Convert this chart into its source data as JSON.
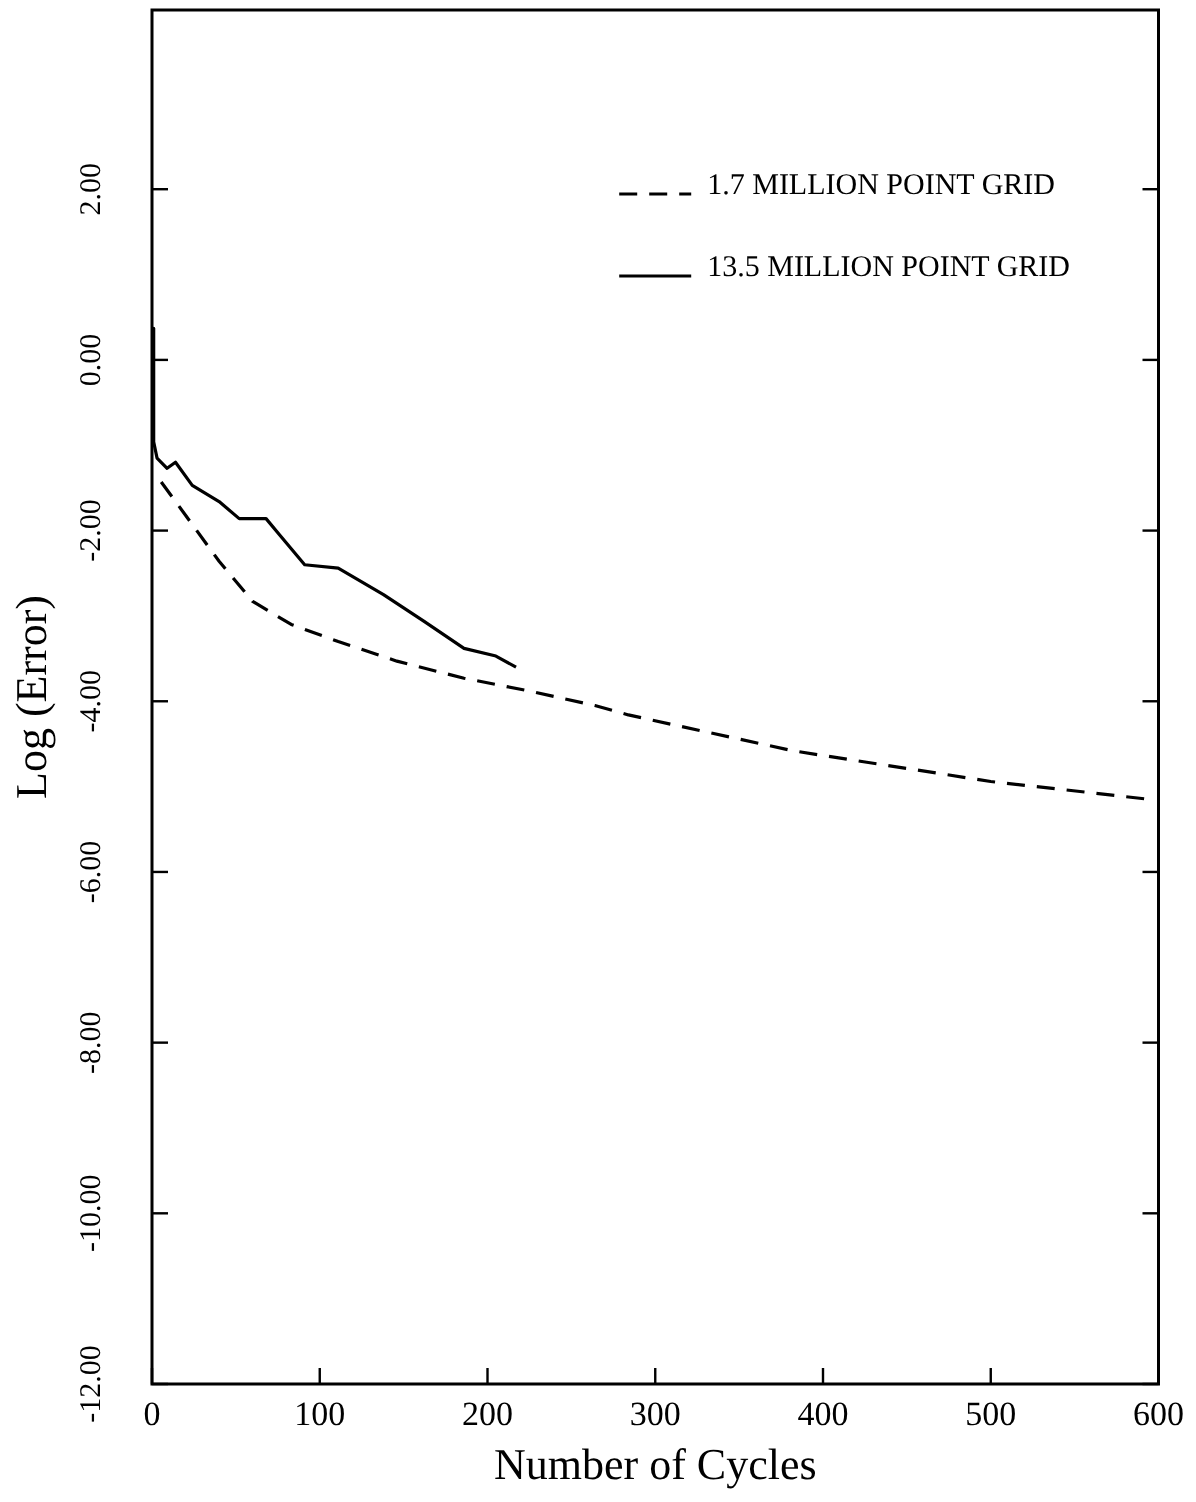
{
  "chart_data": {
    "type": "line",
    "xlabel": "Number of Cycles",
    "ylabel": "Log (Error)",
    "legend": "top right",
    "grid": false,
    "marker": "none",
    "xlim": [
      0,
      600
    ],
    "xticks": [
      0,
      100,
      200,
      300,
      400,
      500,
      600
    ],
    "ylim": [
      -12,
      4.1
    ],
    "yticks": [
      {
        "value": 2,
        "label": "2.00"
      },
      {
        "value": 0,
        "label": "0.00"
      },
      {
        "value": -2,
        "label": "-2.00"
      },
      {
        "value": -4,
        "label": "-4.00"
      },
      {
        "value": -6,
        "label": "-6.00"
      },
      {
        "value": -8,
        "label": "-8.00"
      },
      {
        "value": -10,
        "label": "-10.00"
      },
      {
        "value": -12,
        "label": "-12.00"
      }
    ],
    "series": [
      {
        "name": "1.7 MILLION POINT GRID",
        "color": "#000000",
        "line_style": "dashed",
        "x": [
          5.5,
          20,
          40,
          60,
          83,
          111,
          146,
          186,
          225,
          264,
          284,
          382,
          500,
          595
        ],
        "values": [
          -1.43,
          -1.82,
          -2.36,
          -2.83,
          -3.1,
          -3.3,
          -3.53,
          -3.73,
          -3.88,
          -4.05,
          -4.16,
          -4.58,
          -4.94,
          -5.15
        ]
      },
      {
        "name": "13.5 MILLION POINT GRID",
        "color": "#000000",
        "line_style": "solid",
        "x": [
          0,
          1,
          3,
          9,
          14,
          24,
          40,
          52,
          68,
          76,
          91,
          111,
          138,
          162,
          186,
          205,
          217
        ],
        "values": [
          0.37,
          -0.96,
          -1.15,
          -1.27,
          -1.2,
          -1.47,
          -1.66,
          -1.86,
          -1.86,
          -2.05,
          -2.4,
          -2.44,
          -2.75,
          -3.06,
          -3.38,
          -3.47,
          -3.6
        ]
      }
    ]
  }
}
